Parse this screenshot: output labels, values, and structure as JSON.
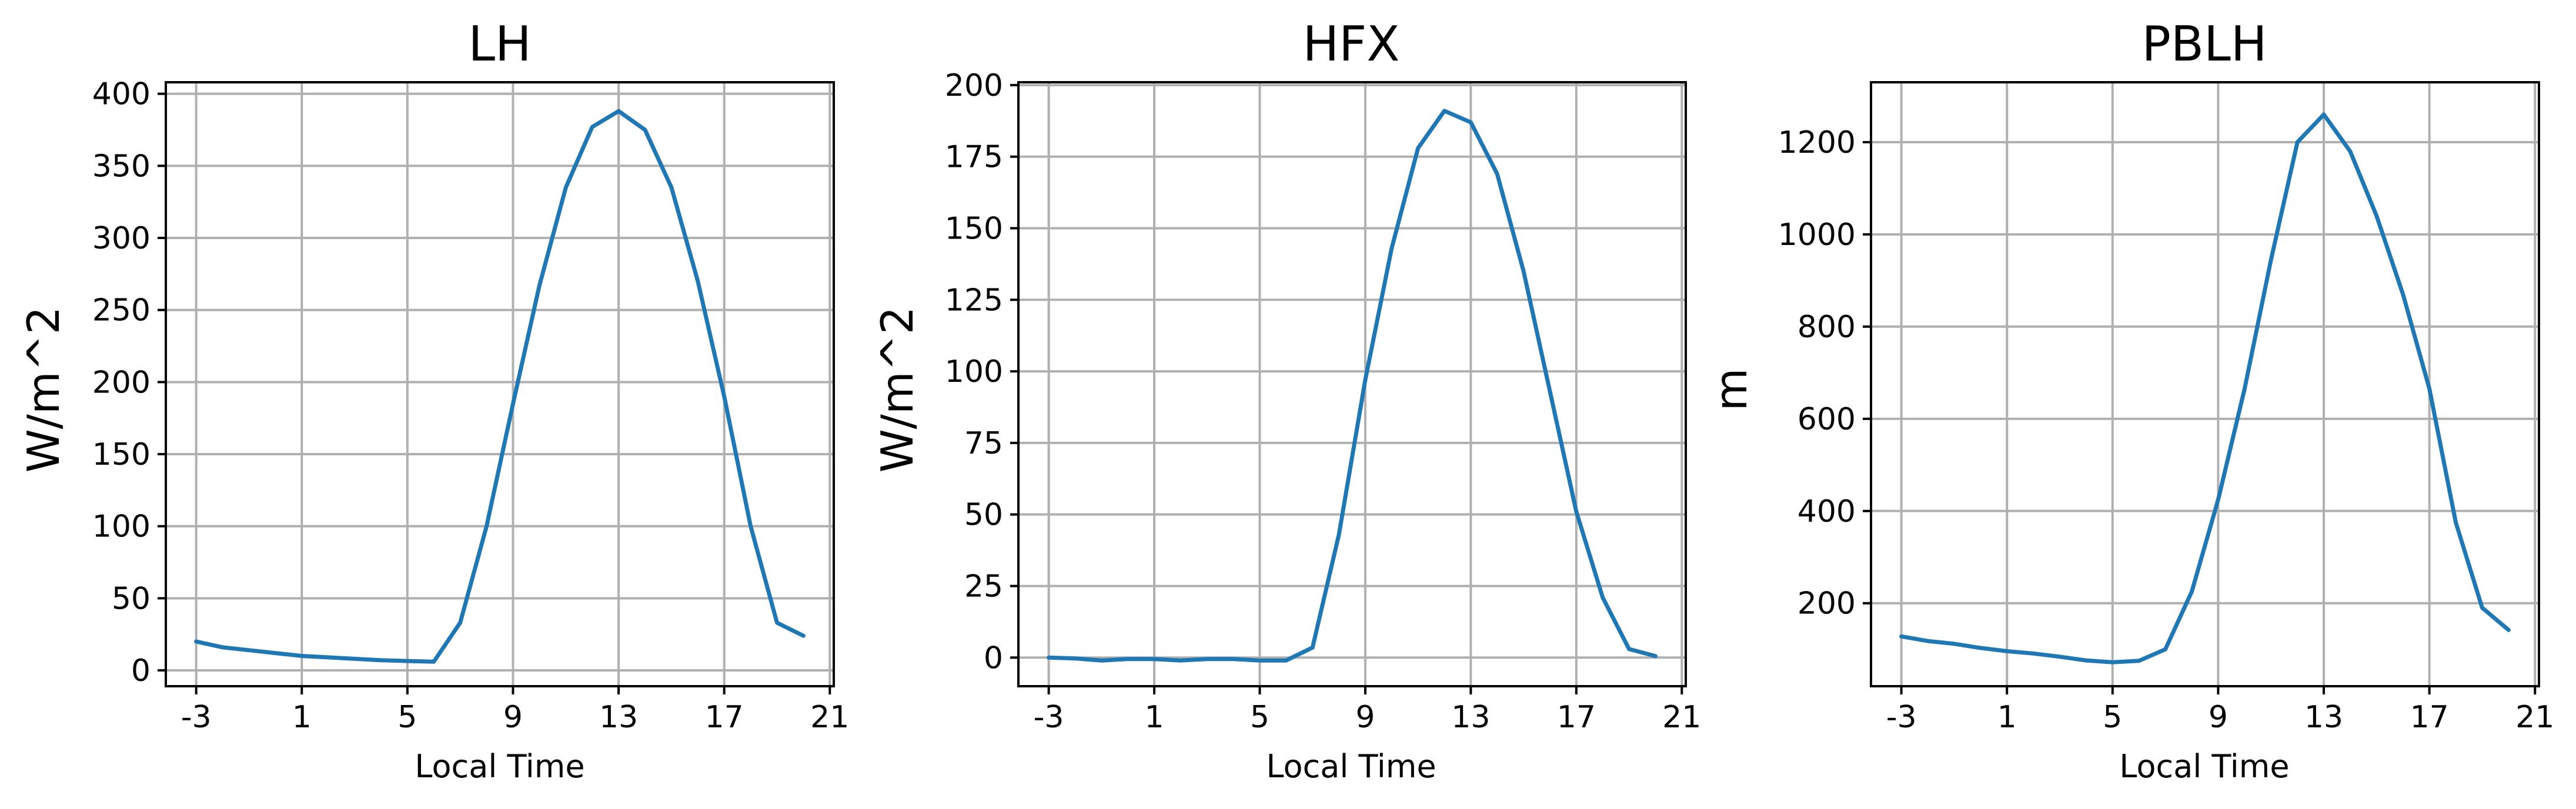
{
  "chart_data": [
    {
      "type": "line",
      "title": "LH",
      "xlabel": "Local Time",
      "ylabel": "W/m^2",
      "x": [
        -3,
        -2,
        -1,
        0,
        1,
        2,
        3,
        4,
        5,
        6,
        7,
        8,
        9,
        10,
        11,
        12,
        13,
        14,
        15,
        16,
        17,
        18,
        19,
        20
      ],
      "xticks": [
        -3,
        1,
        5,
        9,
        13,
        17,
        21
      ],
      "xlim": [
        -4.15,
        21.15
      ],
      "yticks": [
        0,
        50,
        100,
        150,
        200,
        250,
        300,
        350,
        400
      ],
      "ylim": [
        -11,
        408
      ],
      "grid": true,
      "series": [
        {
          "values": [
            20,
            16,
            14,
            12,
            10,
            9,
            8,
            7,
            6.5,
            6,
            33,
            100,
            185,
            267,
            335,
            377,
            388,
            375,
            335,
            270,
            190,
            100,
            33,
            24
          ]
        }
      ]
    },
    {
      "type": "line",
      "title": "HFX",
      "xlabel": "Local Time",
      "ylabel": "W/m^2",
      "x": [
        -3,
        -2,
        -1,
        0,
        1,
        2,
        3,
        4,
        5,
        6,
        7,
        8,
        9,
        10,
        11,
        12,
        13,
        14,
        15,
        16,
        17,
        18,
        19,
        20
      ],
      "xticks": [
        -3,
        1,
        5,
        9,
        13,
        17,
        21
      ],
      "xlim": [
        -4.15,
        21.15
      ],
      "yticks": [
        0,
        25,
        50,
        75,
        100,
        125,
        150,
        175,
        200
      ],
      "ylim": [
        -10,
        201
      ],
      "grid": true,
      "series": [
        {
          "values": [
            0,
            -0.3,
            -1,
            -0.5,
            -0.5,
            -1,
            -0.5,
            -0.5,
            -1,
            -1,
            3.5,
            43,
            97,
            143,
            178,
            191,
            187,
            169,
            135,
            93,
            51,
            21,
            3,
            0.5
          ]
        }
      ]
    },
    {
      "type": "line",
      "title": "PBLH",
      "xlabel": "Local Time",
      "ylabel": "m",
      "x": [
        -3,
        -2,
        -1,
        0,
        1,
        2,
        3,
        4,
        5,
        6,
        7,
        8,
        9,
        10,
        11,
        12,
        13,
        14,
        15,
        16,
        17,
        18,
        19,
        20
      ],
      "xticks": [
        -3,
        1,
        5,
        9,
        13,
        17,
        21
      ],
      "xlim": [
        -4.15,
        21.15
      ],
      "yticks": [
        200,
        400,
        600,
        800,
        1000,
        1200
      ],
      "ylim": [
        20,
        1330
      ],
      "grid": true,
      "series": [
        {
          "values": [
            128,
            118,
            112,
            103,
            96,
            91,
            84,
            76,
            72,
            75,
            100,
            225,
            425,
            665,
            945,
            1200,
            1260,
            1180,
            1040,
            870,
            665,
            375,
            190,
            142
          ]
        }
      ]
    }
  ]
}
